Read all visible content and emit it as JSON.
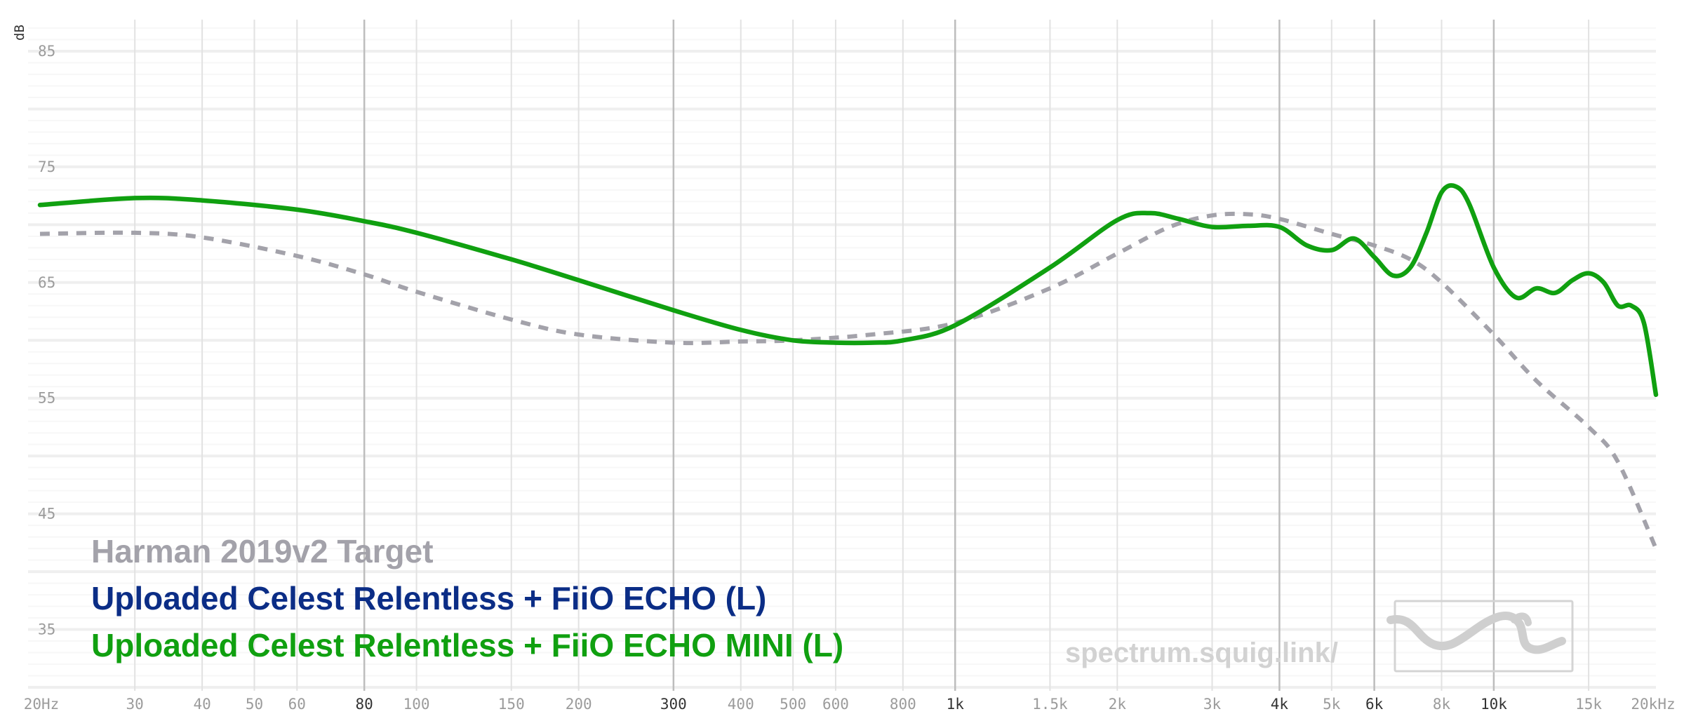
{
  "chart_data": {
    "type": "line",
    "ylabel": "dB",
    "ylim": [
      30,
      87
    ],
    "xlim": [
      20,
      20000
    ],
    "x_scale": "log",
    "grid": true,
    "y_ticks": [
      {
        "value": 85,
        "label": "85"
      },
      {
        "value": 75,
        "label": "75"
      },
      {
        "value": 65,
        "label": "65"
      },
      {
        "value": 55,
        "label": "55"
      },
      {
        "value": 45,
        "label": "45"
      },
      {
        "value": 35,
        "label": "35"
      }
    ],
    "x_ticks": [
      {
        "value": 20,
        "label": "20Hz",
        "major": false
      },
      {
        "value": 30,
        "label": "30",
        "major": false
      },
      {
        "value": 40,
        "label": "40",
        "major": false
      },
      {
        "value": 50,
        "label": "50",
        "major": false
      },
      {
        "value": 60,
        "label": "60",
        "major": false
      },
      {
        "value": 80,
        "label": "80",
        "major": true
      },
      {
        "value": 100,
        "label": "100",
        "major": false
      },
      {
        "value": 150,
        "label": "150",
        "major": false
      },
      {
        "value": 200,
        "label": "200",
        "major": false
      },
      {
        "value": 300,
        "label": "300",
        "major": true
      },
      {
        "value": 400,
        "label": "400",
        "major": false
      },
      {
        "value": 500,
        "label": "500",
        "major": false
      },
      {
        "value": 600,
        "label": "600",
        "major": false
      },
      {
        "value": 800,
        "label": "800",
        "major": false
      },
      {
        "value": 1000,
        "label": "1k",
        "major": true
      },
      {
        "value": 1500,
        "label": "1.5k",
        "major": false
      },
      {
        "value": 2000,
        "label": "2k",
        "major": false
      },
      {
        "value": 3000,
        "label": "3k",
        "major": false
      },
      {
        "value": 4000,
        "label": "4k",
        "major": true
      },
      {
        "value": 5000,
        "label": "5k",
        "major": false
      },
      {
        "value": 6000,
        "label": "6k",
        "major": true
      },
      {
        "value": 8000,
        "label": "8k",
        "major": false
      },
      {
        "value": 10000,
        "label": "10k",
        "major": true
      },
      {
        "value": 15000,
        "label": "15k",
        "major": false
      },
      {
        "value": 20000,
        "label": "20kHz",
        "major": false
      }
    ],
    "series": [
      {
        "name": "Harman 2019v2 Target",
        "color": "#a3a2aa",
        "dashed": true,
        "x": [
          20,
          30,
          40,
          60,
          80,
          100,
          150,
          200,
          300,
          400,
          500,
          700,
          1000,
          1500,
          2000,
          2500,
          3000,
          3500,
          4000,
          5000,
          6000,
          7000,
          8000,
          10000,
          12000,
          15000,
          17000,
          20000
        ],
        "y": [
          69.2,
          69.3,
          68.9,
          67.3,
          65.7,
          64.2,
          61.8,
          60.5,
          59.8,
          59.9,
          60.0,
          60.5,
          61.5,
          64.5,
          67.5,
          69.8,
          70.8,
          70.9,
          70.5,
          69.2,
          68.2,
          67.0,
          65.0,
          60.5,
          56.5,
          52.5,
          49.5,
          42.0
        ]
      },
      {
        "name": "Uploaded Celest Relentless + FiiO ECHO (L)",
        "color": "#0b2d86",
        "dashed": false,
        "x": [],
        "y": []
      },
      {
        "name": "Uploaded Celest Relentless + FiiO ECHO MINI (L)",
        "color": "#10a010",
        "dashed": false,
        "x": [
          20,
          30,
          40,
          60,
          80,
          100,
          150,
          200,
          300,
          400,
          500,
          600,
          700,
          800,
          1000,
          1500,
          2000,
          2300,
          2600,
          3000,
          3500,
          4000,
          4500,
          5000,
          5500,
          6000,
          6500,
          7000,
          7500,
          8000,
          8500,
          9000,
          10000,
          11000,
          12000,
          13000,
          14000,
          15000,
          16000,
          17000,
          18000,
          19000,
          20000
        ],
        "y": [
          71.7,
          72.3,
          72.1,
          71.3,
          70.3,
          69.3,
          67.0,
          65.2,
          62.6,
          60.9,
          60.0,
          59.8,
          59.8,
          60.0,
          61.3,
          66.3,
          70.4,
          71.0,
          70.5,
          69.8,
          69.9,
          69.8,
          68.2,
          67.8,
          68.8,
          67.2,
          65.6,
          66.3,
          69.3,
          72.8,
          73.3,
          71.8,
          66.3,
          63.7,
          64.5,
          64.1,
          65.2,
          65.8,
          65.0,
          63.0,
          63.0,
          61.5,
          55.3
        ]
      }
    ]
  },
  "legend": {
    "target": "Harman 2019v2 Target",
    "echo": "Uploaded Celest Relentless + FiiO ECHO (L)",
    "echo_mini": "Uploaded Celest Relentless + FiiO ECHO MINI (L)"
  },
  "watermark": {
    "text": "spectrum.squig.link/",
    "logo_icon": "squiggle-logo-icon"
  }
}
